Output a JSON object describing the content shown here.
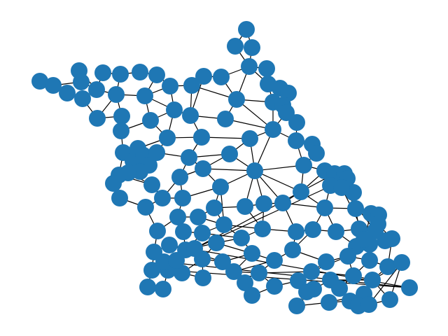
{
  "diagram": {
    "type": "network-graph",
    "node_color": "#1f77b4",
    "edge_color": "#000000",
    "node_count": 172,
    "labels_shown": false
  }
}
